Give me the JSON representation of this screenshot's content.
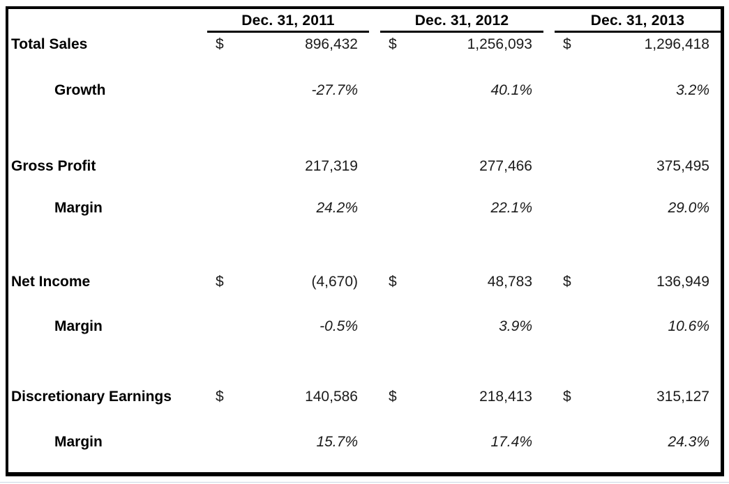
{
  "colors": {
    "border": "#000000",
    "text": "#1b1b1b",
    "label_text": "#000000",
    "background": "#ffffff"
  },
  "table": {
    "columns": [
      "Dec. 31, 2011",
      "Dec. 31, 2012",
      "Dec. 31, 2013"
    ],
    "rows": [
      {
        "label": "Total Sales",
        "sym": "$",
        "values": [
          "896,432",
          "1,256,093",
          "1,296,418"
        ]
      },
      {
        "label": "Growth",
        "values": [
          "-27.7%",
          "40.1%",
          "3.2%"
        ]
      },
      {
        "label": "Gross Profit",
        "values": [
          "217,319",
          "277,466",
          "375,495"
        ]
      },
      {
        "label": "Margin",
        "values": [
          "24.2%",
          "22.1%",
          "29.0%"
        ]
      },
      {
        "label": "Net Income",
        "sym": "$",
        "values": [
          "(4,670)",
          "48,783",
          "136,949"
        ]
      },
      {
        "label": "Margin",
        "values": [
          "-0.5%",
          "3.9%",
          "10.6%"
        ]
      },
      {
        "label": "Discretionary Earnings",
        "sym": "$",
        "values": [
          "140,586",
          "218,413",
          "315,127"
        ]
      },
      {
        "label": "Margin",
        "values": [
          "15.7%",
          "17.4%",
          "24.3%"
        ]
      }
    ]
  }
}
